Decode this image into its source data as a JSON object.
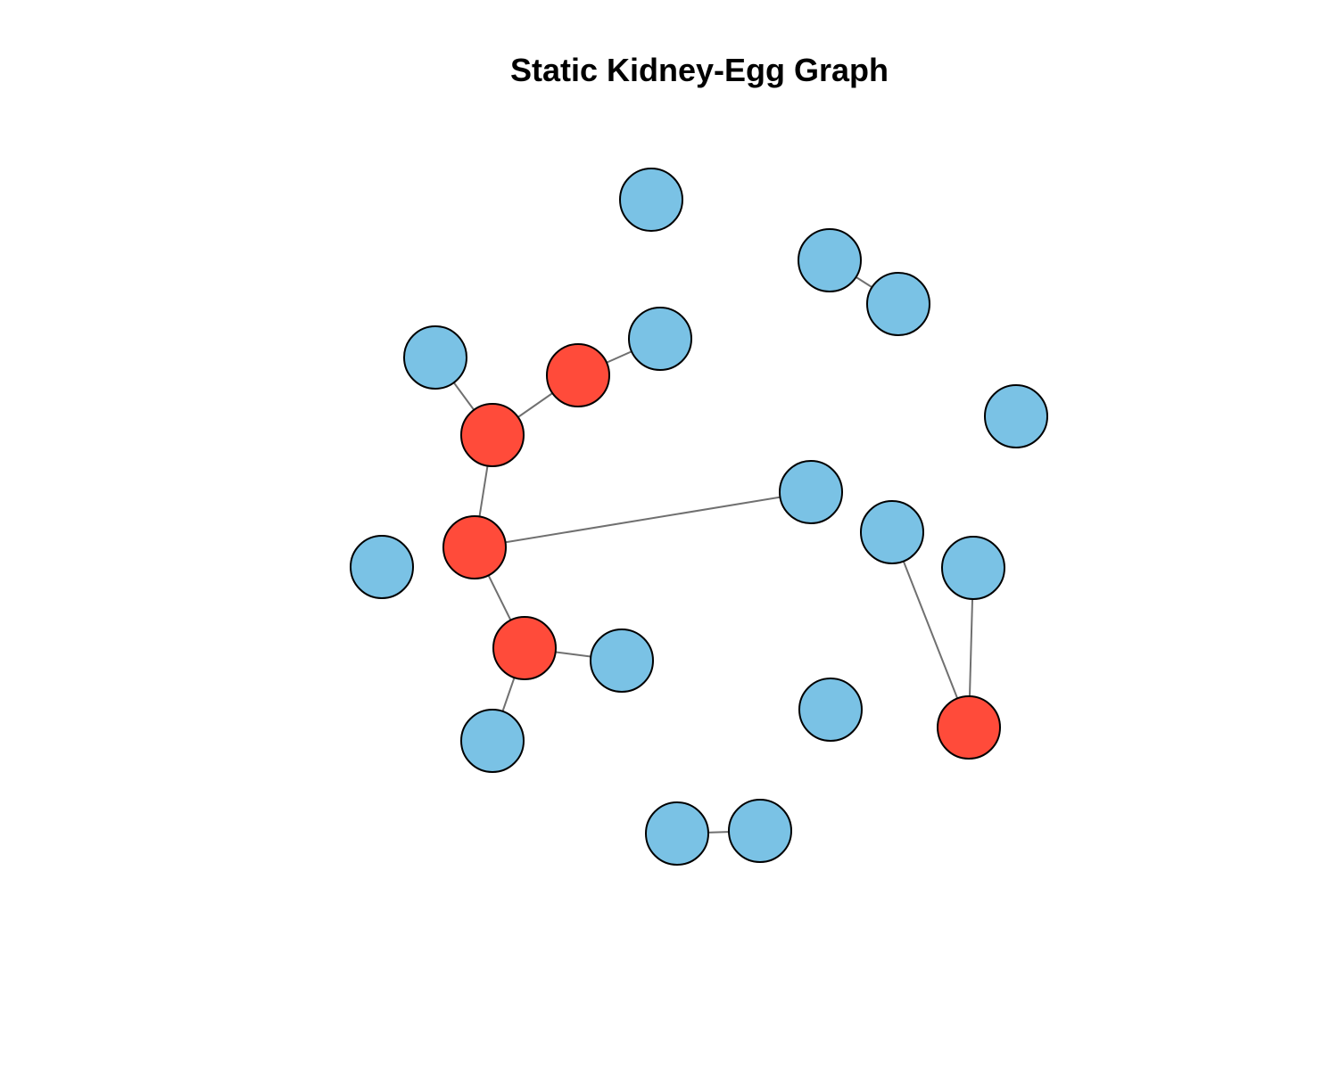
{
  "title": "Static Kidney-Egg Graph",
  "colors": {
    "kidney": "#FF4B3A",
    "egg": "#7AC2E5",
    "edge": "#707070",
    "outline": "#000000"
  },
  "graph": {
    "nodes": [
      {
        "id": "n1",
        "type": "egg"
      },
      {
        "id": "n2",
        "type": "egg"
      },
      {
        "id": "n3",
        "type": "egg"
      },
      {
        "id": "n4",
        "type": "egg"
      },
      {
        "id": "n5",
        "type": "kidney"
      },
      {
        "id": "n6",
        "type": "egg"
      },
      {
        "id": "n7",
        "type": "egg"
      },
      {
        "id": "n8",
        "type": "kidney"
      },
      {
        "id": "n9",
        "type": "egg"
      },
      {
        "id": "n10",
        "type": "kidney"
      },
      {
        "id": "n11",
        "type": "egg"
      },
      {
        "id": "n12",
        "type": "egg"
      },
      {
        "id": "n13",
        "type": "kidney"
      },
      {
        "id": "n14",
        "type": "egg"
      },
      {
        "id": "n15",
        "type": "egg"
      },
      {
        "id": "n16",
        "type": "egg"
      },
      {
        "id": "n17",
        "type": "kidney"
      },
      {
        "id": "n18",
        "type": "egg"
      },
      {
        "id": "n19",
        "type": "egg"
      },
      {
        "id": "n20",
        "type": "egg"
      }
    ],
    "edges": [
      [
        "n2",
        "n3"
      ],
      [
        "n4",
        "n8"
      ],
      [
        "n8",
        "n5"
      ],
      [
        "n5",
        "n6"
      ],
      [
        "n8",
        "n10"
      ],
      [
        "n9",
        "n10"
      ],
      [
        "n10",
        "n13"
      ],
      [
        "n11",
        "n17"
      ],
      [
        "n17",
        "n12"
      ],
      [
        "n13",
        "n14"
      ],
      [
        "n13",
        "n15"
      ],
      [
        "n18",
        "n19"
      ]
    ]
  }
}
